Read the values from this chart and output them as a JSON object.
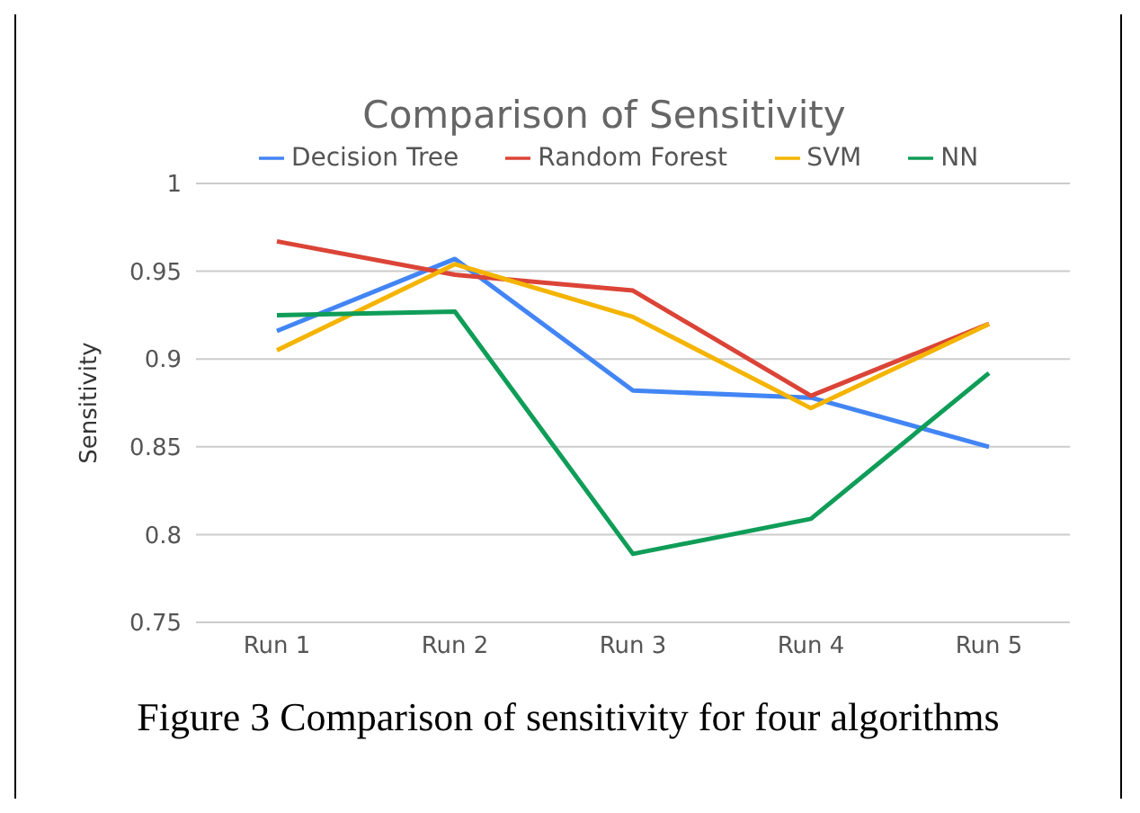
{
  "chart_data": {
    "type": "line",
    "title": "Comparison of Sensitivity",
    "ylabel": "Sensitivity",
    "categories": [
      "Run 1",
      "Run 2",
      "Run 3",
      "Run 4",
      "Run 5"
    ],
    "series": [
      {
        "name": "Decision Tree",
        "color": "#4285f4",
        "values": [
          0.916,
          0.957,
          0.882,
          0.878,
          0.85
        ]
      },
      {
        "name": "Random Forest",
        "color": "#db4437",
        "values": [
          0.967,
          0.948,
          0.939,
          0.879,
          0.92
        ]
      },
      {
        "name": "SVM",
        "color": "#f4b400",
        "values": [
          0.905,
          0.954,
          0.924,
          0.872,
          0.92
        ]
      },
      {
        "name": "NN",
        "color": "#0f9d58",
        "values": [
          0.925,
          0.927,
          0.789,
          0.809,
          0.892
        ]
      }
    ],
    "ylim": [
      0.75,
      1
    ],
    "yticks": [
      0.75,
      0.8,
      0.85,
      0.9,
      0.95,
      1
    ],
    "grid": "y",
    "legend": "top",
    "marker": "none",
    "line_style": "solid",
    "annotations": [
      "Figure 3 Comparison of sensitivity for four algorithms"
    ]
  }
}
